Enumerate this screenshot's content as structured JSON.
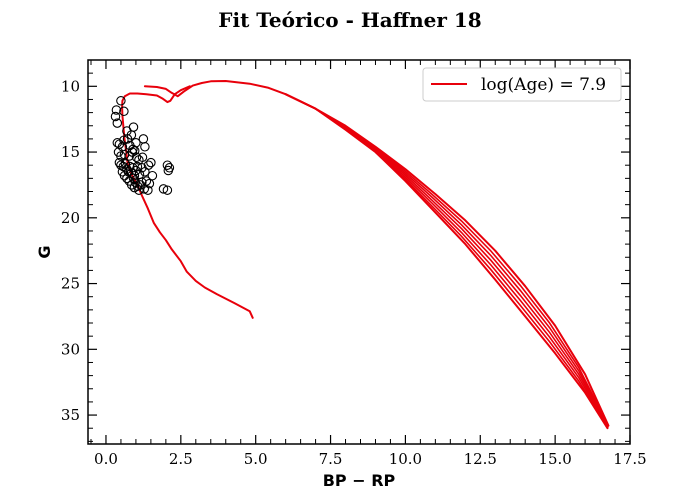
{
  "chart_data": {
    "type": "scatter",
    "title": "Fit Teórico - Haffner 18",
    "xlabel": "BP − RP",
    "ylabel": "G",
    "xlim": [
      -0.6,
      17.5
    ],
    "ylim": [
      37.2,
      8.0
    ],
    "y_inverted": true,
    "x_ticks": [
      0.0,
      2.5,
      5.0,
      7.5,
      10.0,
      12.5,
      15.0,
      17.5
    ],
    "x_tick_labels": [
      "0.0",
      "2.5",
      "5.0",
      "7.5",
      "10.0",
      "12.5",
      "15.0",
      "17.5"
    ],
    "y_ticks": [
      10,
      15,
      20,
      25,
      30,
      35
    ],
    "y_tick_labels": [
      "10",
      "15",
      "20",
      "25",
      "30",
      "35"
    ],
    "legend_position": "top-right",
    "series": [
      {
        "name": "log(Age) = 7.9",
        "kind": "line",
        "color": "#e8000b",
        "segments": [
          [
            [
              4.9,
              27.6
            ],
            [
              4.8,
              27.1
            ],
            [
              4.3,
              26.5
            ],
            [
              3.7,
              25.8
            ],
            [
              3.3,
              25.3
            ],
            [
              3.0,
              24.8
            ],
            [
              2.7,
              24.1
            ],
            [
              2.5,
              23.3
            ],
            [
              2.2,
              22.4
            ],
            [
              2.0,
              21.7
            ],
            [
              1.8,
              21.1
            ],
            [
              1.6,
              20.4
            ],
            [
              1.4,
              19.3
            ],
            [
              1.2,
              18.3
            ],
            [
              1.05,
              17.5
            ],
            [
              0.9,
              16.9
            ],
            [
              0.8,
              16.4
            ],
            [
              0.72,
              15.8
            ],
            [
              0.68,
              15.0
            ],
            [
              0.62,
              14.0
            ],
            [
              0.58,
              13.0
            ],
            [
              0.55,
              12.2
            ],
            [
              0.54,
              11.6
            ],
            [
              0.55,
              11.1
            ],
            [
              0.63,
              10.75
            ],
            [
              0.8,
              10.55
            ],
            [
              1.05,
              10.55
            ],
            [
              1.35,
              10.6
            ],
            [
              1.7,
              10.7
            ],
            [
              1.9,
              10.95
            ],
            [
              2.05,
              11.2
            ],
            [
              2.15,
              11.1
            ],
            [
              2.3,
              10.6
            ],
            [
              2.5,
              10.3
            ],
            [
              2.8,
              10.0
            ]
          ],
          [
            [
              1.3,
              10.0
            ],
            [
              1.7,
              10.05
            ],
            [
              2.0,
              10.2
            ],
            [
              2.2,
              10.5
            ],
            [
              2.4,
              10.75
            ],
            [
              2.6,
              10.4
            ],
            [
              2.9,
              9.95
            ],
            [
              3.2,
              9.75
            ],
            [
              3.5,
              9.62
            ],
            [
              4.0,
              9.6
            ],
            [
              4.8,
              9.8
            ],
            [
              5.4,
              10.1
            ],
            [
              6.0,
              10.6
            ],
            [
              7.0,
              11.7
            ],
            [
              8.0,
              13.0
            ],
            [
              9.0,
              14.6
            ],
            [
              10.0,
              16.3
            ],
            [
              11.0,
              18.2
            ],
            [
              12.0,
              20.2
            ],
            [
              13.0,
              22.5
            ],
            [
              14.0,
              25.2
            ],
            [
              15.0,
              28.2
            ],
            [
              16.0,
              31.9
            ],
            [
              16.78,
              35.8
            ]
          ],
          [
            [
              6.0,
              10.6
            ],
            [
              7.0,
              11.7
            ],
            [
              8.0,
              13.3
            ],
            [
              9.0,
              15.0
            ],
            [
              10.0,
              17.2
            ],
            [
              11.0,
              19.6
            ],
            [
              12.0,
              22.0
            ],
            [
              13.0,
              24.7
            ],
            [
              14.0,
              27.5
            ],
            [
              15.0,
              30.3
            ],
            [
              16.0,
              33.3
            ],
            [
              16.75,
              36.0
            ]
          ]
        ]
      },
      {
        "name": "",
        "kind": "scatter",
        "marker": "open-circle",
        "color": "#000000",
        "points": [
          [
            0.35,
            11.8
          ],
          [
            0.32,
            12.3
          ],
          [
            0.38,
            12.8
          ],
          [
            0.6,
            11.9
          ],
          [
            0.5,
            11.1
          ],
          [
            0.92,
            13.1
          ],
          [
            0.7,
            13.4
          ],
          [
            0.85,
            13.7
          ],
          [
            0.45,
            14.4
          ],
          [
            0.55,
            14.6
          ],
          [
            0.6,
            14.1
          ],
          [
            0.72,
            14.0
          ],
          [
            0.8,
            14.5
          ],
          [
            0.9,
            14.8
          ],
          [
            1.0,
            14.3
          ],
          [
            1.25,
            14.0
          ],
          [
            1.3,
            14.6
          ],
          [
            0.38,
            14.3
          ],
          [
            0.42,
            15.0
          ],
          [
            0.5,
            15.3
          ],
          [
            0.62,
            15.2
          ],
          [
            0.78,
            15.3
          ],
          [
            0.88,
            15.0
          ],
          [
            0.96,
            14.9
          ],
          [
            1.02,
            15.4
          ],
          [
            1.1,
            15.6
          ],
          [
            1.22,
            15.4
          ],
          [
            0.45,
            15.8
          ],
          [
            0.5,
            16.0
          ],
          [
            0.58,
            16.1
          ],
          [
            0.65,
            15.9
          ],
          [
            0.7,
            16.3
          ],
          [
            0.75,
            16.5
          ],
          [
            0.8,
            16.1
          ],
          [
            0.85,
            16.6
          ],
          [
            0.9,
            16.2
          ],
          [
            0.95,
            16.8
          ],
          [
            1.0,
            16.4
          ],
          [
            1.05,
            16.1
          ],
          [
            1.12,
            16.7
          ],
          [
            1.2,
            16.2
          ],
          [
            1.3,
            16.5
          ],
          [
            1.42,
            16.0
          ],
          [
            1.5,
            15.8
          ],
          [
            0.55,
            16.5
          ],
          [
            0.62,
            16.8
          ],
          [
            0.7,
            17.0
          ],
          [
            0.78,
            17.2
          ],
          [
            0.86,
            17.5
          ],
          [
            0.92,
            17.0
          ],
          [
            0.98,
            17.3
          ],
          [
            1.06,
            17.6
          ],
          [
            1.15,
            17.5
          ],
          [
            1.28,
            17.8
          ],
          [
            1.4,
            17.9
          ],
          [
            1.35,
            17.2
          ],
          [
            1.55,
            16.8
          ],
          [
            1.45,
            17.4
          ],
          [
            0.95,
            17.7
          ],
          [
            2.05,
            16.0
          ],
          [
            2.12,
            16.2
          ],
          [
            2.08,
            16.4
          ],
          [
            1.92,
            17.8
          ],
          [
            2.05,
            17.9
          ],
          [
            1.2,
            17.3
          ],
          [
            1.1,
            17.9
          ]
        ]
      }
    ]
  }
}
